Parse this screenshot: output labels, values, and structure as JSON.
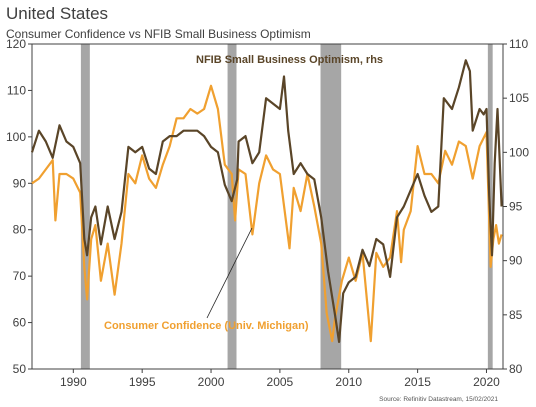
{
  "header": {
    "title": "United States",
    "subtitle": "Consumer Confidence vs NFIB Small Business Optimism"
  },
  "source": "Source: Refinitiv Datastream, 15/02/2021",
  "colors": {
    "consumer": "#f0a030",
    "nfib": "#5a4528",
    "recession": "#a6a6a6",
    "axis": "#404040"
  },
  "chart_data": {
    "type": "line",
    "title": "Consumer Confidence vs NFIB Small Business Optimism",
    "xlabel": "",
    "ylabel": "",
    "xlim": [
      1987.0,
      2021.2
    ],
    "ylim": [
      50,
      120
    ],
    "ylim_right": [
      80,
      110
    ],
    "x_ticks": [
      1990,
      1995,
      2000,
      2005,
      2010,
      2015,
      2020
    ],
    "y_ticks": [
      50,
      60,
      70,
      80,
      90,
      100,
      110,
      120
    ],
    "y_ticks_right": [
      80,
      85,
      90,
      95,
      100,
      105,
      110
    ],
    "grid": false,
    "legend": "inline annotations",
    "recessions": [
      [
        1990.55,
        1991.2
      ],
      [
        2001.2,
        2001.85
      ],
      [
        2007.95,
        2009.45
      ],
      [
        2020.1,
        2020.45
      ]
    ],
    "annotations": [
      {
        "text": "NFIB Small Business Optimism, rhs",
        "series": "nfib"
      },
      {
        "text": "Consumer Confidence (Univ. Michigan)",
        "series": "consumer"
      }
    ],
    "series": [
      {
        "name": "Consumer Confidence (Univ. Michigan)",
        "axis": "left",
        "color": "#f0a030",
        "points": [
          [
            1987.0,
            90
          ],
          [
            1987.5,
            91
          ],
          [
            1988.0,
            93
          ],
          [
            1988.5,
            95
          ],
          [
            1988.7,
            82
          ],
          [
            1989.0,
            92
          ],
          [
            1989.5,
            92
          ],
          [
            1990.0,
            91
          ],
          [
            1990.5,
            88
          ],
          [
            1990.8,
            72
          ],
          [
            1991.0,
            65
          ],
          [
            1991.3,
            78
          ],
          [
            1991.6,
            81
          ],
          [
            1992.0,
            69
          ],
          [
            1992.5,
            77
          ],
          [
            1993.0,
            66
          ],
          [
            1993.5,
            77
          ],
          [
            1994.0,
            92
          ],
          [
            1994.5,
            90
          ],
          [
            1995.0,
            96
          ],
          [
            1995.5,
            91
          ],
          [
            1996.0,
            89
          ],
          [
            1996.5,
            94
          ],
          [
            1997.0,
            98
          ],
          [
            1997.5,
            104
          ],
          [
            1998.0,
            104
          ],
          [
            1998.5,
            106
          ],
          [
            1999.0,
            105
          ],
          [
            1999.5,
            106
          ],
          [
            2000.0,
            111
          ],
          [
            2000.5,
            106
          ],
          [
            2001.0,
            94
          ],
          [
            2001.5,
            92
          ],
          [
            2001.75,
            82
          ],
          [
            2002.0,
            93
          ],
          [
            2002.5,
            92
          ],
          [
            2003.0,
            79
          ],
          [
            2003.5,
            90
          ],
          [
            2004.0,
            96
          ],
          [
            2004.5,
            93
          ],
          [
            2005.0,
            92
          ],
          [
            2005.7,
            76
          ],
          [
            2006.0,
            89
          ],
          [
            2006.5,
            84
          ],
          [
            2007.0,
            92
          ],
          [
            2007.5,
            85
          ],
          [
            2008.0,
            77
          ],
          [
            2008.4,
            62
          ],
          [
            2008.8,
            56
          ],
          [
            2009.0,
            61
          ],
          [
            2009.5,
            69
          ],
          [
            2010.0,
            74
          ],
          [
            2010.5,
            69
          ],
          [
            2011.0,
            75
          ],
          [
            2011.6,
            56
          ],
          [
            2012.0,
            75
          ],
          [
            2012.5,
            72
          ],
          [
            2013.0,
            74
          ],
          [
            2013.5,
            84
          ],
          [
            2013.8,
            73
          ],
          [
            2014.0,
            80
          ],
          [
            2014.5,
            84
          ],
          [
            2015.0,
            98
          ],
          [
            2015.5,
            92
          ],
          [
            2016.0,
            92
          ],
          [
            2016.5,
            90
          ],
          [
            2017.0,
            97
          ],
          [
            2017.5,
            94
          ],
          [
            2018.0,
            99
          ],
          [
            2018.5,
            98
          ],
          [
            2019.0,
            91
          ],
          [
            2019.5,
            98
          ],
          [
            2020.0,
            101
          ],
          [
            2020.3,
            72
          ],
          [
            2020.5,
            78
          ],
          [
            2020.7,
            81
          ],
          [
            2020.9,
            77
          ],
          [
            2021.1,
            79
          ]
        ]
      },
      {
        "name": "NFIB Small Business Optimism",
        "axis": "right",
        "color": "#5a4528",
        "points": [
          [
            1987.0,
            100
          ],
          [
            1987.5,
            102
          ],
          [
            1988.0,
            101
          ],
          [
            1988.5,
            99.5
          ],
          [
            1989.0,
            102.5
          ],
          [
            1989.5,
            101
          ],
          [
            1990.0,
            100.5
          ],
          [
            1990.5,
            99
          ],
          [
            1990.8,
            92
          ],
          [
            1991.0,
            90.5
          ],
          [
            1991.3,
            94
          ],
          [
            1991.6,
            95
          ],
          [
            1992.0,
            91.5
          ],
          [
            1992.5,
            95
          ],
          [
            1993.0,
            92
          ],
          [
            1993.5,
            94.5
          ],
          [
            1994.0,
            100.5
          ],
          [
            1994.5,
            100
          ],
          [
            1995.0,
            100.5
          ],
          [
            1995.5,
            98.5
          ],
          [
            1996.0,
            98
          ],
          [
            1996.5,
            101
          ],
          [
            1997.0,
            101.5
          ],
          [
            1997.5,
            101.5
          ],
          [
            1998.0,
            102
          ],
          [
            1998.5,
            102
          ],
          [
            1999.0,
            102
          ],
          [
            1999.5,
            101.5
          ],
          [
            2000.0,
            100.5
          ],
          [
            2000.5,
            100
          ],
          [
            2001.0,
            97
          ],
          [
            2001.5,
            95.5
          ],
          [
            2001.9,
            97.5
          ],
          [
            2002.0,
            101
          ],
          [
            2002.5,
            101.5
          ],
          [
            2003.0,
            99
          ],
          [
            2003.5,
            100
          ],
          [
            2004.0,
            105
          ],
          [
            2004.5,
            104.5
          ],
          [
            2005.0,
            104
          ],
          [
            2005.3,
            107
          ],
          [
            2005.6,
            102
          ],
          [
            2006.0,
            98
          ],
          [
            2006.5,
            99
          ],
          [
            2007.0,
            98
          ],
          [
            2007.5,
            97.5
          ],
          [
            2008.0,
            94
          ],
          [
            2008.5,
            89
          ],
          [
            2009.0,
            85
          ],
          [
            2009.3,
            82.5
          ],
          [
            2009.6,
            87
          ],
          [
            2010.0,
            88
          ],
          [
            2010.5,
            88.5
          ],
          [
            2011.0,
            91
          ],
          [
            2011.5,
            89.5
          ],
          [
            2012.0,
            92
          ],
          [
            2012.5,
            91.5
          ],
          [
            2013.0,
            88.5
          ],
          [
            2013.5,
            94
          ],
          [
            2014.0,
            95
          ],
          [
            2014.5,
            96.5
          ],
          [
            2015.0,
            98
          ],
          [
            2015.5,
            96
          ],
          [
            2016.0,
            94.5
          ],
          [
            2016.5,
            95
          ],
          [
            2016.9,
            105
          ],
          [
            2017.5,
            104
          ],
          [
            2018.0,
            106
          ],
          [
            2018.5,
            108.5
          ],
          [
            2018.8,
            107.5
          ],
          [
            2019.0,
            102
          ],
          [
            2019.5,
            104
          ],
          [
            2019.8,
            103.5
          ],
          [
            2020.0,
            104
          ],
          [
            2020.2,
            96
          ],
          [
            2020.4,
            90.5
          ],
          [
            2020.6,
            99
          ],
          [
            2020.8,
            104
          ],
          [
            2020.9,
            101
          ],
          [
            2021.1,
            95
          ]
        ]
      }
    ]
  }
}
